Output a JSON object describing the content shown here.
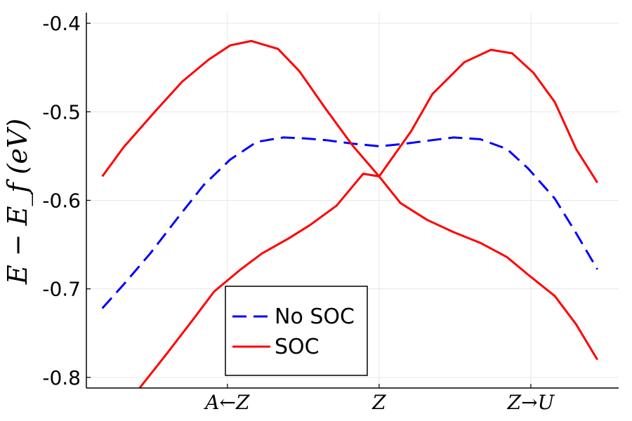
{
  "chart_data": {
    "type": "line",
    "title": "",
    "xlabel": "",
    "ylabel": "E − E_f (eV)",
    "xlim": [
      0,
      1
    ],
    "ylim": [
      -0.812,
      -0.388
    ],
    "grid": true,
    "legend_position": "bottom-center",
    "x_ticks": [
      {
        "value": 0.265,
        "label": "A←Z"
      },
      {
        "value": 0.55,
        "label": "Z"
      },
      {
        "value": 0.835,
        "label": "Z→U"
      }
    ],
    "y_ticks": [
      {
        "value": -0.4,
        "label": "-0.4"
      },
      {
        "value": -0.5,
        "label": "-0.5"
      },
      {
        "value": -0.6,
        "label": "-0.6"
      },
      {
        "value": -0.7,
        "label": "-0.7"
      },
      {
        "value": -0.8,
        "label": "-0.8"
      }
    ],
    "series": [
      {
        "name": "No SOC",
        "color": "#0000ff",
        "style": "dashed",
        "x": [
          0.03,
          0.07,
          0.12,
          0.17,
          0.22,
          0.27,
          0.32,
          0.37,
          0.41,
          0.45,
          0.5,
          0.55,
          0.6,
          0.65,
          0.69,
          0.74,
          0.79,
          0.83,
          0.88,
          0.92,
          0.96
        ],
        "y": [
          -0.722,
          -0.695,
          -0.66,
          -0.621,
          -0.583,
          -0.554,
          -0.534,
          -0.529,
          -0.53,
          -0.532,
          -0.536,
          -0.539,
          -0.536,
          -0.532,
          -0.529,
          -0.531,
          -0.542,
          -0.564,
          -0.598,
          -0.637,
          -0.678
        ]
      },
      {
        "name": "SOC",
        "color": "#ff0000",
        "style": "solid",
        "x": [
          0.03,
          0.07,
          0.13,
          0.18,
          0.23,
          0.27,
          0.31,
          0.36,
          0.4,
          0.45,
          0.5,
          0.55
        ],
        "y": [
          -0.573,
          -0.54,
          -0.499,
          -0.466,
          -0.441,
          -0.425,
          -0.42,
          -0.429,
          -0.454,
          -0.497,
          -0.538,
          -0.573
        ]
      },
      {
        "name": "",
        "color": "#ff0000",
        "style": "solid",
        "x": [
          0.55,
          0.61,
          0.65,
          0.71,
          0.76,
          0.8,
          0.84,
          0.88,
          0.92,
          0.96
        ],
        "y": [
          -0.573,
          -0.522,
          -0.48,
          -0.444,
          -0.43,
          -0.434,
          -0.456,
          -0.489,
          -0.542,
          -0.58
        ]
      },
      {
        "name": "",
        "color": "#ff0000",
        "style": "solid",
        "x": [
          0.1,
          0.15,
          0.2,
          0.24,
          0.29,
          0.33,
          0.38,
          0.42,
          0.47,
          0.52,
          0.55
        ],
        "y": [
          -0.812,
          -0.774,
          -0.735,
          -0.703,
          -0.678,
          -0.66,
          -0.643,
          -0.628,
          -0.606,
          -0.57,
          -0.573
        ]
      },
      {
        "name": "",
        "color": "#ff0000",
        "style": "solid",
        "x": [
          0.55,
          0.59,
          0.64,
          0.69,
          0.74,
          0.79,
          0.83,
          0.88,
          0.92,
          0.96
        ],
        "y": [
          -0.573,
          -0.603,
          -0.622,
          -0.636,
          -0.648,
          -0.664,
          -0.684,
          -0.708,
          -0.74,
          -0.78
        ]
      }
    ],
    "legend": [
      {
        "label": "No SOC",
        "color": "#0000ff",
        "style": "dashed"
      },
      {
        "label": "SOC",
        "color": "#ff0000",
        "style": "solid"
      }
    ]
  }
}
